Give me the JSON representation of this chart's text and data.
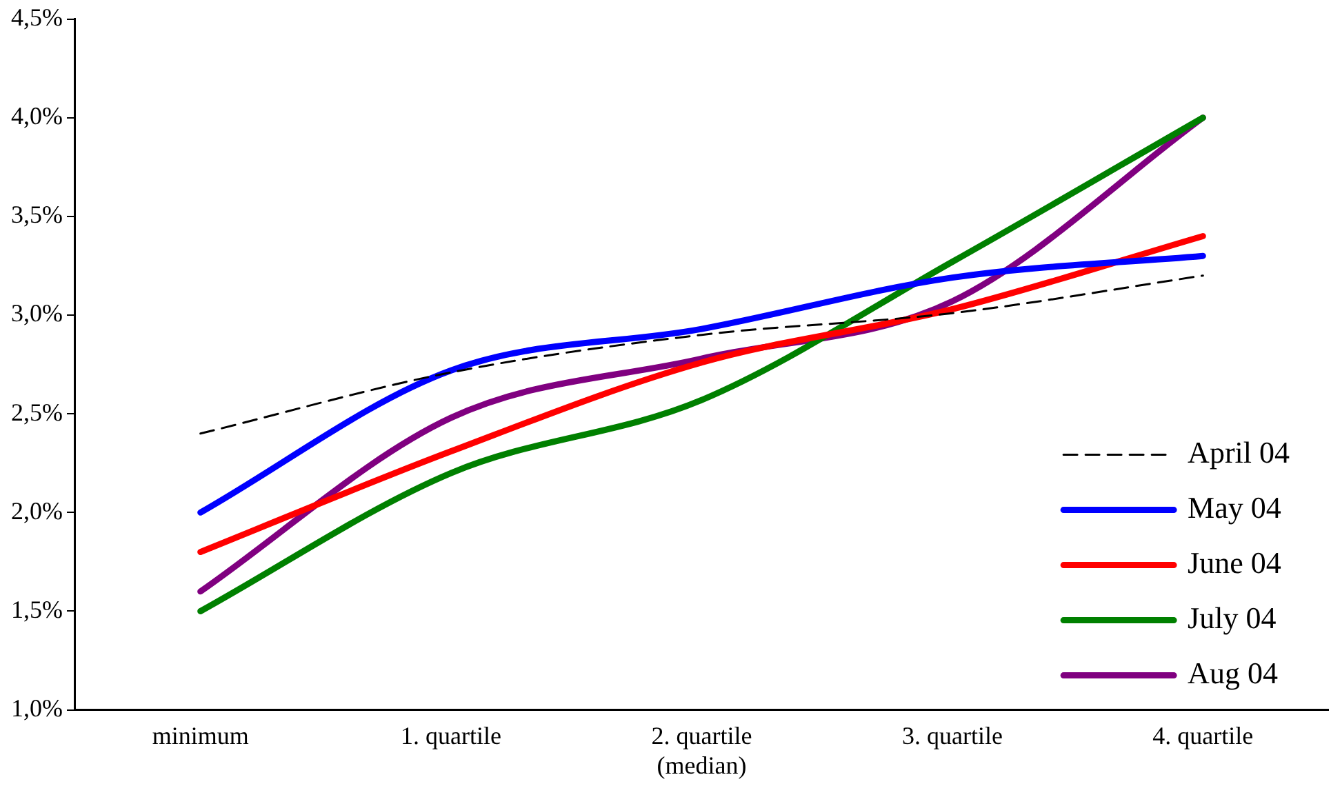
{
  "chart_data": {
    "type": "line",
    "categories": [
      "minimum",
      "1. quartile",
      "2. quartile\n(median)",
      "3. quartile",
      "4. quartile"
    ],
    "series": [
      {
        "name": "April 04",
        "color": "#000000",
        "line_style": "dashed",
        "values": [
          2.4,
          2.71,
          2.9,
          3.01,
          3.2
        ]
      },
      {
        "name": "May 04",
        "color": "#0000ff",
        "values": [
          2.0,
          2.72,
          2.93,
          3.19,
          3.3
        ]
      },
      {
        "name": "June 04",
        "color": "#ff0000",
        "values": [
          1.8,
          2.31,
          2.76,
          3.03,
          3.4
        ]
      },
      {
        "name": "July 04",
        "color": "#008000",
        "values": [
          1.5,
          2.2,
          2.57,
          3.27,
          4.0
        ]
      },
      {
        "name": "Aug 04",
        "color": "#800080",
        "values": [
          1.6,
          2.48,
          2.78,
          3.07,
          4.0
        ]
      }
    ],
    "ylim": [
      1.0,
      4.5
    ],
    "yticks": [
      {
        "value": 1.0,
        "label": "1,0%"
      },
      {
        "value": 1.5,
        "label": "1,5%"
      },
      {
        "value": 2.0,
        "label": "2,0%"
      },
      {
        "value": 2.5,
        "label": "2,5%"
      },
      {
        "value": 3.0,
        "label": "3,0%"
      },
      {
        "value": 3.5,
        "label": "3,5%"
      },
      {
        "value": 4.0,
        "label": "4,0%"
      },
      {
        "value": 4.5,
        "label": "4,5%"
      }
    ],
    "grid": false,
    "legend": "bottom right",
    "marker": "none"
  }
}
